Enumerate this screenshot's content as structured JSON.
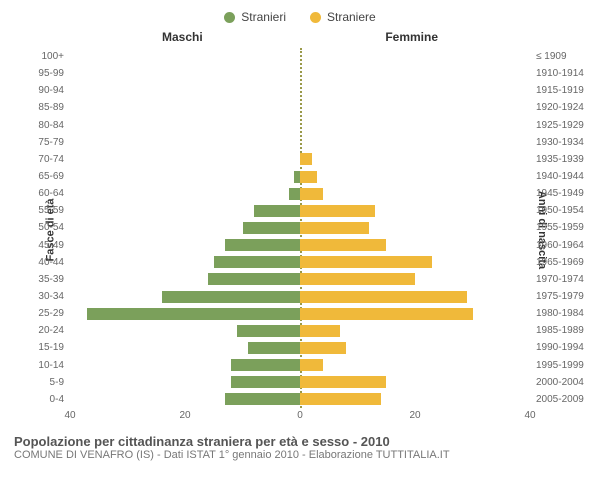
{
  "legend": {
    "male_label": "Stranieri",
    "female_label": "Straniere"
  },
  "colors": {
    "male": "#7ba05b",
    "female": "#f0b93a",
    "mid_line": "#9a9a4a",
    "background": "#ffffff"
  },
  "headers": {
    "left": "Maschi",
    "right": "Femmine"
  },
  "y_left_label": "Fasce di età",
  "y_right_label": "Anni di nascita",
  "x_max": 40,
  "x_ticks_left": [
    40,
    20,
    0
  ],
  "x_ticks_right": [
    0,
    20,
    40
  ],
  "bands": [
    {
      "age": "100+",
      "birth": "≤ 1909",
      "m": 0,
      "f": 0
    },
    {
      "age": "95-99",
      "birth": "1910-1914",
      "m": 0,
      "f": 0
    },
    {
      "age": "90-94",
      "birth": "1915-1919",
      "m": 0,
      "f": 0
    },
    {
      "age": "85-89",
      "birth": "1920-1924",
      "m": 0,
      "f": 0
    },
    {
      "age": "80-84",
      "birth": "1925-1929",
      "m": 0,
      "f": 0
    },
    {
      "age": "75-79",
      "birth": "1930-1934",
      "m": 0,
      "f": 0
    },
    {
      "age": "70-74",
      "birth": "1935-1939",
      "m": 0,
      "f": 2
    },
    {
      "age": "65-69",
      "birth": "1940-1944",
      "m": 1,
      "f": 3
    },
    {
      "age": "60-64",
      "birth": "1945-1949",
      "m": 2,
      "f": 4
    },
    {
      "age": "55-59",
      "birth": "1950-1954",
      "m": 8,
      "f": 13
    },
    {
      "age": "50-54",
      "birth": "1955-1959",
      "m": 10,
      "f": 12
    },
    {
      "age": "45-49",
      "birth": "1960-1964",
      "m": 13,
      "f": 15
    },
    {
      "age": "40-44",
      "birth": "1965-1969",
      "m": 15,
      "f": 23
    },
    {
      "age": "35-39",
      "birth": "1970-1974",
      "m": 16,
      "f": 20
    },
    {
      "age": "30-34",
      "birth": "1975-1979",
      "m": 24,
      "f": 29
    },
    {
      "age": "25-29",
      "birth": "1980-1984",
      "m": 37,
      "f": 30
    },
    {
      "age": "20-24",
      "birth": "1985-1989",
      "m": 11,
      "f": 7
    },
    {
      "age": "15-19",
      "birth": "1990-1994",
      "m": 9,
      "f": 8
    },
    {
      "age": "10-14",
      "birth": "1995-1999",
      "m": 12,
      "f": 4
    },
    {
      "age": "5-9",
      "birth": "2000-2004",
      "m": 12,
      "f": 15
    },
    {
      "age": "0-4",
      "birth": "2005-2009",
      "m": 13,
      "f": 14
    }
  ],
  "footer": {
    "title": "Popolazione per cittadinanza straniera per età e sesso - 2010",
    "subtitle": "COMUNE DI VENAFRO (IS) - Dati ISTAT 1° gennaio 2010 - Elaborazione TUTTITALIA.IT"
  }
}
